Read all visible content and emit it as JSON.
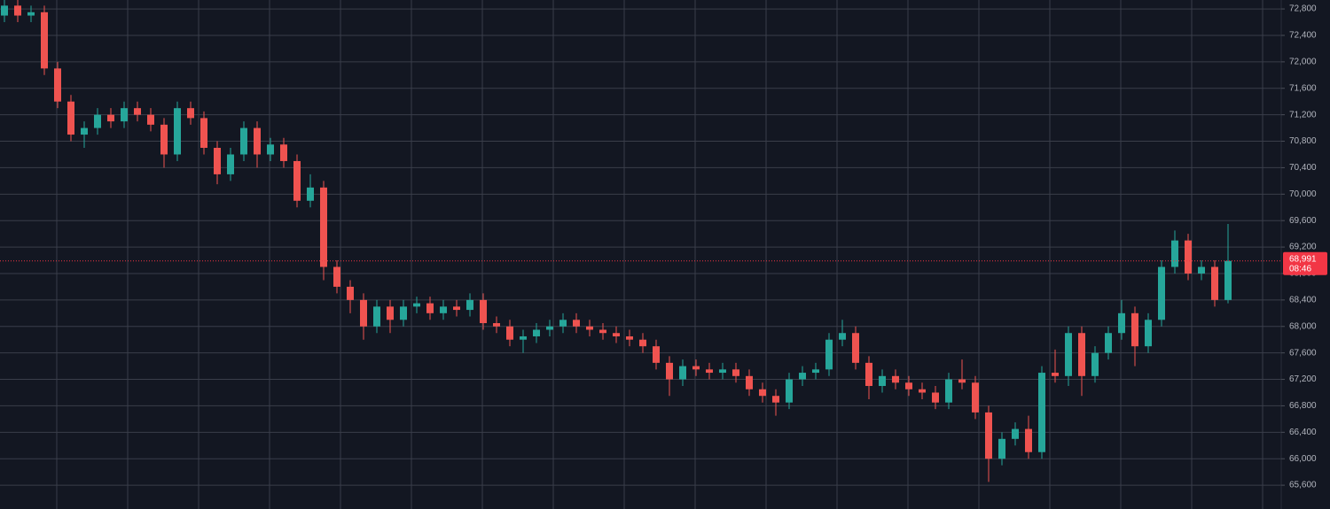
{
  "chart_data": {
    "type": "candlestick",
    "colors": {
      "up": "#26a69a",
      "down": "#ef5350",
      "grid": "#3a3e4a",
      "background": "#131722",
      "axis_text": "#b2b5be",
      "last_price": "#f23645"
    },
    "grid": true,
    "ylim": [
      65240,
      72935
    ],
    "yticks": [
      {
        "value": 65600,
        "label": "65,600"
      },
      {
        "value": 66000,
        "label": "66,000"
      },
      {
        "value": 66400,
        "label": "66,400"
      },
      {
        "value": 66800,
        "label": "66,800"
      },
      {
        "value": 67200,
        "label": "67,200"
      },
      {
        "value": 67600,
        "label": "67,600"
      },
      {
        "value": 68000,
        "label": "68,000"
      },
      {
        "value": 68400,
        "label": "68,400"
      },
      {
        "value": 68800,
        "label": "68,800"
      },
      {
        "value": 69200,
        "label": "69,200"
      },
      {
        "value": 69600,
        "label": "69,600"
      },
      {
        "value": 70000,
        "label": "70,000"
      },
      {
        "value": 70400,
        "label": "70,400"
      },
      {
        "value": 70800,
        "label": "70,800"
      },
      {
        "value": 71200,
        "label": "71,200"
      },
      {
        "value": 71600,
        "label": "71,600"
      },
      {
        "value": 72000,
        "label": "72,000"
      },
      {
        "value": 72400,
        "label": "72,400"
      },
      {
        "value": 72800,
        "label": "72,800"
      }
    ],
    "last_price": {
      "value": 68991,
      "label": "68,991"
    },
    "countdown": "08:46",
    "open": [
      72700,
      72850,
      72700,
      72750,
      71900,
      71400,
      70900,
      71000,
      71200,
      71100,
      71300,
      71200,
      71050,
      70600,
      71300,
      71150,
      70700,
      70300,
      70600,
      71000,
      70600,
      70750,
      70500,
      69900,
      70100,
      68900,
      68600,
      68400,
      68000,
      68300,
      68100,
      68300,
      68350,
      68200,
      68300,
      68250,
      68400,
      68050,
      68000,
      67800,
      67850,
      67950,
      68000,
      68100,
      68000,
      67950,
      67900,
      67850,
      67800,
      67700,
      67450,
      67200,
      67400,
      67350,
      67300,
      67350,
      67250,
      67050,
      66950,
      66850,
      67200,
      67300,
      67350,
      67800,
      67900,
      67450,
      67100,
      67250,
      67150,
      67050,
      67000,
      66850,
      67200,
      67150,
      66700,
      66000,
      66300,
      66450,
      66100,
      67300,
      67250,
      67900,
      67250,
      67600,
      67900,
      68200,
      67700,
      68100,
      68900,
      69300,
      68800,
      68900,
      68400
    ],
    "high": [
      72950,
      72950,
      72850,
      72850,
      72000,
      71500,
      71100,
      71300,
      71300,
      71400,
      71400,
      71300,
      71150,
      71400,
      71400,
      71250,
      70800,
      70700,
      71100,
      71100,
      70850,
      70850,
      70600,
      70300,
      70200,
      69000,
      68700,
      68500,
      68400,
      68400,
      68400,
      68450,
      68450,
      68400,
      68400,
      68500,
      68500,
      68150,
      68100,
      67950,
      68050,
      68100,
      68200,
      68200,
      68100,
      68050,
      68000,
      67950,
      67900,
      67800,
      67550,
      67500,
      67500,
      67450,
      67450,
      67450,
      67350,
      67150,
      67050,
      67300,
      67400,
      67450,
      67900,
      68100,
      68000,
      67550,
      67350,
      67350,
      67250,
      67150,
      67100,
      67300,
      67500,
      67250,
      66800,
      66400,
      66550,
      66650,
      67400,
      67650,
      68000,
      68000,
      67700,
      68000,
      68400,
      68300,
      68200,
      69000,
      69450,
      69400,
      69000,
      69000,
      69550
    ],
    "low": [
      72600,
      72600,
      72600,
      71800,
      71300,
      70800,
      70700,
      70900,
      71000,
      71000,
      71100,
      70950,
      70400,
      70500,
      71050,
      70600,
      70150,
      70200,
      70500,
      70400,
      70500,
      70400,
      69800,
      69800,
      68700,
      68500,
      68200,
      67800,
      67900,
      67900,
      68000,
      68200,
      68100,
      68100,
      68150,
      68150,
      67950,
      67900,
      67700,
      67600,
      67750,
      67850,
      67900,
      67900,
      67850,
      67800,
      67750,
      67700,
      67600,
      67350,
      66950,
      67100,
      67250,
      67200,
      67200,
      67150,
      66950,
      66850,
      66650,
      66750,
      67100,
      67200,
      67250,
      67700,
      67350,
      66900,
      67000,
      67050,
      66950,
      66900,
      66750,
      66750,
      67050,
      66600,
      65650,
      65900,
      66200,
      66000,
      66000,
      67150,
      67100,
      66950,
      67150,
      67500,
      67800,
      67400,
      67600,
      68000,
      68800,
      68700,
      68700,
      68300,
      68350
    ],
    "close": [
      72850,
      72700,
      72750,
      71900,
      71400,
      70900,
      71000,
      71200,
      71100,
      71300,
      71200,
      71050,
      70600,
      71300,
      71150,
      70700,
      70300,
      70600,
      71000,
      70600,
      70750,
      70500,
      69900,
      70100,
      68900,
      68600,
      68400,
      68000,
      68300,
      68100,
      68300,
      68350,
      68200,
      68300,
      68250,
      68400,
      68050,
      68000,
      67800,
      67850,
      67950,
      68000,
      68100,
      68000,
      67950,
      67900,
      67850,
      67800,
      67700,
      67450,
      67200,
      67400,
      67350,
      67300,
      67350,
      67250,
      67050,
      66950,
      66850,
      67200,
      67300,
      67350,
      67800,
      67900,
      67450,
      67100,
      67250,
      67150,
      67050,
      67000,
      66850,
      67200,
      67150,
      66700,
      66000,
      66300,
      66450,
      66100,
      67300,
      67250,
      67900,
      67250,
      67600,
      67900,
      68200,
      67700,
      68100,
      68900,
      69300,
      68800,
      68900,
      68400,
      68991
    ]
  }
}
